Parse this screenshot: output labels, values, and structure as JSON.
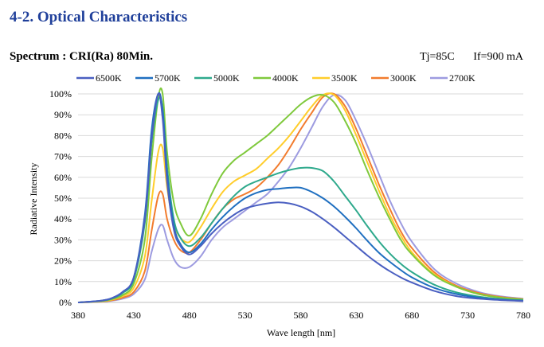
{
  "section_title": "4-2. Optical Characteristics",
  "subtitle": "Spectrum : CRI(Ra) 80Min.",
  "conditions": {
    "tj": "Tj=85C",
    "if": "If=900 mA"
  },
  "chart_data": {
    "type": "line",
    "title": "",
    "xlabel": "Wave length [nm]",
    "ylabel": "Radiative Intensity",
    "xlim": [
      380,
      780
    ],
    "ylim": [
      0,
      100
    ],
    "x_ticks": [
      380,
      430,
      480,
      530,
      580,
      630,
      680,
      730,
      780
    ],
    "y_ticks": [
      "0%",
      "10%",
      "20%",
      "30%",
      "40%",
      "50%",
      "60%",
      "70%",
      "80%",
      "90%",
      "100%"
    ],
    "y_unit": "%",
    "grid": "horizontal",
    "legend_position": "top",
    "x": [
      380,
      400,
      410,
      420,
      430,
      440,
      446,
      452,
      456,
      460,
      466,
      472,
      480,
      490,
      500,
      510,
      520,
      530,
      540,
      550,
      560,
      570,
      580,
      590,
      600,
      610,
      620,
      630,
      640,
      650,
      660,
      670,
      680,
      700,
      720,
      740,
      760,
      780
    ],
    "series": [
      {
        "name": "6500K",
        "color": "#4a5fc1",
        "values": [
          0,
          0.8,
          2,
          5,
          12,
          40,
          78,
          100,
          88,
          58,
          35,
          27,
          23,
          27,
          33,
          38,
          42,
          45,
          46.5,
          47.5,
          48,
          47.5,
          46,
          43.5,
          40,
          36,
          31.5,
          27,
          22.5,
          18.5,
          15,
          12,
          9.5,
          5.5,
          3,
          1.8,
          1.1,
          0.7
        ]
      },
      {
        "name": "5700K",
        "color": "#1f6fc0",
        "values": [
          0,
          0.8,
          2,
          5,
          12,
          42,
          82,
          100,
          92,
          62,
          37,
          28,
          24,
          28,
          35,
          41,
          46,
          50,
          52.5,
          54,
          54.5,
          55,
          55,
          53,
          50,
          46,
          41,
          35.5,
          29.5,
          24,
          19.5,
          15.5,
          12,
          7,
          4,
          2.3,
          1.3,
          0.8
        ]
      },
      {
        "name": "5000K",
        "color": "#2ea98c",
        "values": [
          0,
          0.7,
          1.8,
          4.5,
          11,
          38,
          76,
          97,
          93,
          65,
          40,
          31,
          27,
          31,
          38,
          45,
          51,
          55.5,
          58,
          60,
          62,
          63.5,
          64.5,
          64.5,
          63,
          58,
          51,
          44,
          36.5,
          29.5,
          23.5,
          18.5,
          14.5,
          8.5,
          4.8,
          2.8,
          1.6,
          1
        ]
      },
      {
        "name": "4000K",
        "color": "#7fc93c",
        "values": [
          0,
          0.6,
          1.5,
          3.5,
          9,
          30,
          68,
          98,
          100,
          72,
          48,
          38,
          32,
          40,
          52,
          62,
          68,
          72,
          76,
          80,
          85,
          90,
          95,
          98.5,
          99.5,
          96,
          87,
          76,
          63,
          51,
          40,
          30,
          23,
          13,
          7.5,
          4,
          2.3,
          1.4
        ]
      },
      {
        "name": "3500K",
        "color": "#ffcd2b",
        "values": [
          0,
          0.5,
          1.3,
          3,
          7,
          22,
          48,
          72,
          74,
          55,
          38,
          31,
          29,
          36,
          45,
          53,
          58,
          61,
          64,
          69,
          74,
          80,
          87,
          94,
          99.5,
          99.5,
          92,
          80,
          67,
          54,
          42,
          32,
          24,
          13.5,
          7.5,
          4,
          2.3,
          1.4
        ]
      },
      {
        "name": "3000K",
        "color": "#f27c2e",
        "values": [
          0,
          0.4,
          1,
          2.3,
          5,
          15,
          34,
          51,
          52,
          40,
          30,
          25,
          24,
          30,
          38,
          45,
          49.5,
          52,
          55,
          60,
          66,
          74,
          83,
          91,
          98.5,
          100,
          94,
          83,
          70,
          57,
          45,
          34,
          26,
          14.5,
          8,
          4.5,
          2.6,
          1.6
        ]
      },
      {
        "name": "2700K",
        "color": "#9d9be0",
        "values": [
          0,
          0.3,
          0.8,
          1.8,
          4,
          11,
          24,
          35,
          37,
          30,
          21,
          17,
          17,
          22,
          30,
          36,
          40,
          44,
          48,
          52,
          58,
          65,
          74,
          84,
          94,
          99.5,
          97,
          87,
          75,
          62,
          49,
          38,
          29,
          16,
          9,
          5,
          2.9,
          1.8
        ]
      }
    ]
  }
}
